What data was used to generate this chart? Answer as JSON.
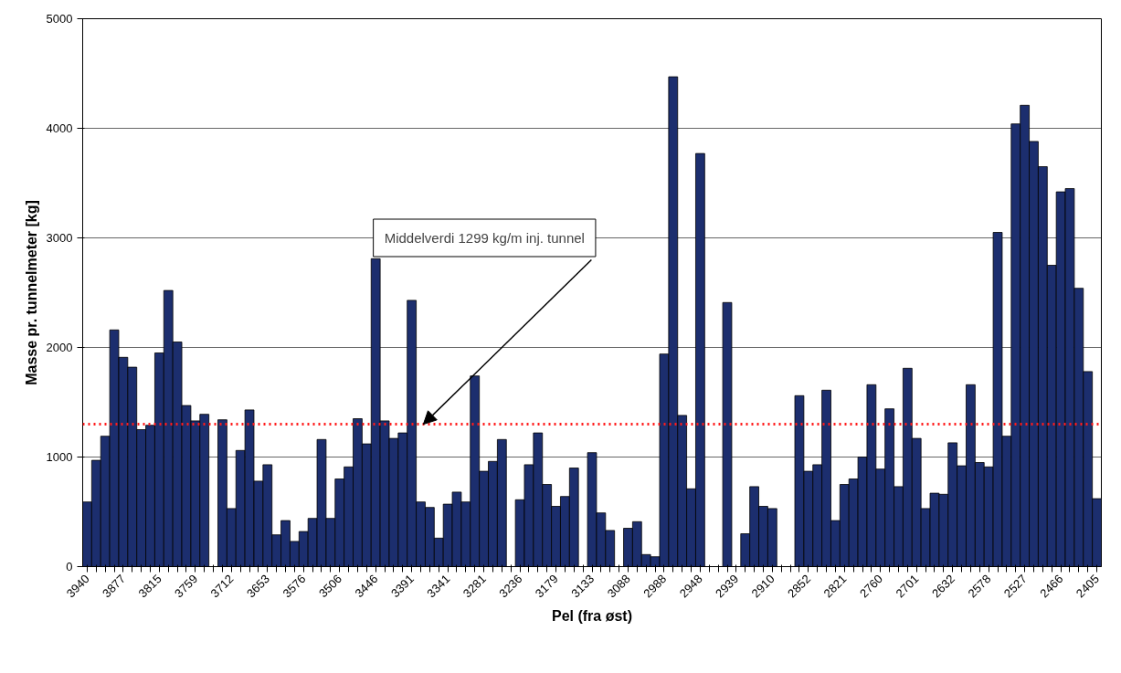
{
  "chart_data": {
    "type": "bar",
    "xlabel": "Pel (fra øst)",
    "ylabel": "Masse pr. tunnelmeter [kg]",
    "categories": [
      "3940",
      null,
      null,
      null,
      "3877",
      null,
      null,
      null,
      "3815",
      null,
      null,
      null,
      "3759",
      null,
      null,
      null,
      "3712",
      null,
      null,
      null,
      "3653",
      null,
      null,
      null,
      "3576",
      null,
      null,
      null,
      "3506",
      null,
      null,
      null,
      "3446",
      null,
      null,
      null,
      "3391",
      null,
      null,
      null,
      "3341",
      null,
      null,
      null,
      "3281",
      null,
      null,
      null,
      "3236",
      null,
      null,
      null,
      "3179",
      null,
      null,
      null,
      "3133",
      null,
      null,
      null,
      "3088",
      null,
      null,
      null,
      "2988",
      null,
      null,
      null,
      "2948",
      null,
      null,
      null,
      "2939",
      null,
      null,
      null,
      "2910",
      null,
      null,
      null,
      "2852",
      null,
      null,
      null,
      "2821",
      null,
      null,
      null,
      "2760",
      null,
      null,
      null,
      "2701",
      null,
      null,
      null,
      "2632",
      null,
      null,
      null,
      "2578",
      null,
      null,
      null,
      "2527",
      null,
      null,
      null,
      "2466",
      null,
      null,
      null,
      "2405"
    ],
    "values": [
      590,
      970,
      1190,
      2160,
      1910,
      1820,
      1250,
      1290,
      1950,
      2520,
      2050,
      1470,
      1330,
      1390,
      0,
      1340,
      530,
      1060,
      1430,
      780,
      930,
      290,
      420,
      230,
      320,
      440,
      1160,
      440,
      800,
      910,
      1350,
      1120,
      2810,
      1330,
      1170,
      1220,
      2430,
      590,
      540,
      260,
      570,
      680,
      590,
      1740,
      870,
      960,
      1160,
      0,
      610,
      930,
      1220,
      750,
      550,
      640,
      900,
      0,
      1040,
      490,
      330,
      0,
      350,
      410,
      110,
      90,
      1940,
      4470,
      1380,
      710,
      3770,
      0,
      0,
      2410,
      0,
      300,
      730,
      550,
      530,
      0,
      0,
      1560,
      870,
      930,
      1610,
      420,
      750,
      800,
      1000,
      1660,
      890,
      1440,
      730,
      1810,
      1170,
      530,
      670,
      660,
      1130,
      920,
      1660,
      950,
      910,
      3050,
      1190,
      4040,
      4210,
      3880,
      3650,
      2750,
      3420,
      3450,
      2540,
      1780,
      620
    ],
    "color": "#1c2e6e",
    "ylim": [
      0,
      5000
    ],
    "yticks": [
      0,
      1000,
      2000,
      3000,
      4000,
      5000
    ],
    "grid": "y",
    "ref_lines": [
      {
        "axis": "y",
        "value": 1299,
        "label": "Middelverdi 1299 kg/m inj. tunnel",
        "color": "#ff1a1a",
        "line_style": "dotted"
      }
    ]
  }
}
